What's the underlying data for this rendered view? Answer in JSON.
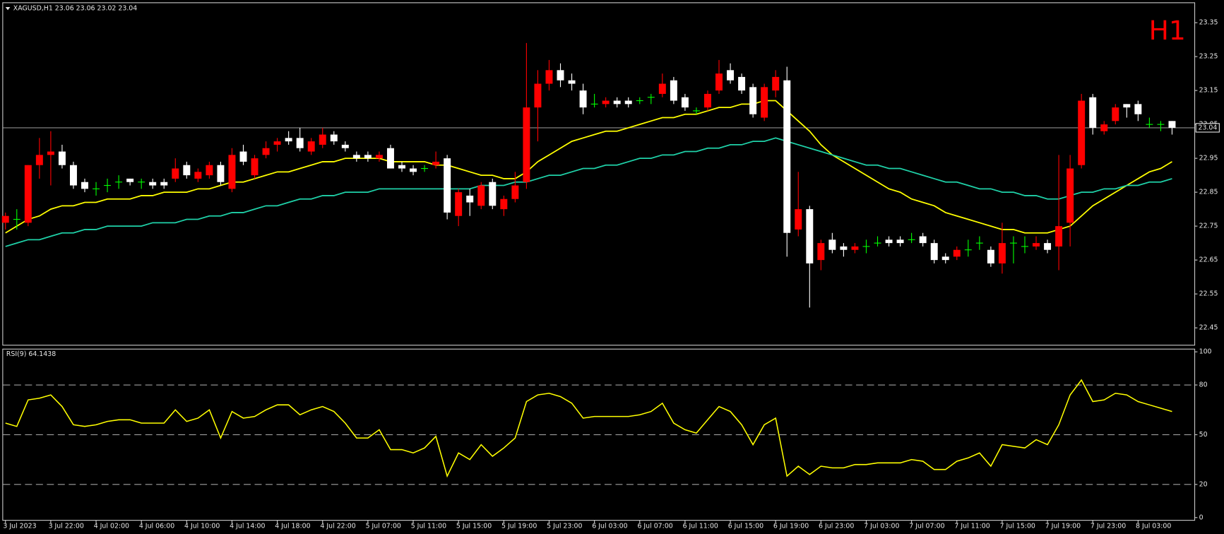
{
  "chart_data": [
    {
      "type": "candlestick",
      "title": "XAGUSD,H1 23.06 23.06 23.02 23.04",
      "timeframe": "H1",
      "current_price": 23.04,
      "up_color": "#ff0000",
      "down_color": "#ffffff",
      "doji_color": "#00ff00",
      "categories": [
        "3 Jul 2023",
        null,
        null,
        null,
        "3 Jul 22:00",
        null,
        null,
        null,
        "4 Jul 02:00",
        null,
        null,
        null,
        "4 Jul 06:00",
        null,
        null,
        null,
        "4 Jul 10:00",
        null,
        null,
        null,
        "4 Jul 14:00",
        null,
        null,
        null,
        "4 Jul 18:00",
        null,
        null,
        null,
        "4 Jul 22:00",
        null,
        null,
        null,
        "5 Jul 07:00",
        null,
        null,
        null,
        "5 Jul 11:00",
        null,
        null,
        null,
        "5 Jul 15:00",
        null,
        null,
        null,
        "5 Jul 19:00",
        null,
        null,
        null,
        "5 Jul 23:00",
        null,
        null,
        null,
        "6 Jul 03:00",
        null,
        null,
        null,
        "6 Jul 07:00",
        null,
        null,
        null,
        "6 Jul 11:00",
        null,
        null,
        null,
        "6 Jul 15:00",
        null,
        null,
        null,
        "6 Jul 19:00",
        null,
        null,
        null,
        "6 Jul 23:00",
        null,
        null,
        null,
        "7 Jul 03:00",
        null,
        null,
        null,
        "7 Jul 07:00",
        null,
        null,
        null,
        "7 Jul 11:00",
        null,
        null,
        null,
        "7 Jul 15:00",
        null,
        null,
        null,
        "7 Jul 19:00",
        null,
        null,
        null,
        "7 Jul 23:00",
        null,
        null,
        null,
        "8 Jul 03:00",
        null,
        null,
        null
      ],
      "open": [
        22.76,
        22.77,
        22.76,
        22.93,
        22.96,
        22.97,
        22.93,
        22.88,
        22.86,
        22.87,
        22.88,
        22.89,
        22.88,
        22.88,
        22.88,
        22.89,
        22.93,
        22.89,
        22.9,
        22.93,
        22.86,
        22.97,
        22.9,
        22.96,
        22.99,
        23.01,
        23.01,
        22.97,
        22.99,
        23.02,
        22.99,
        22.96,
        22.96,
        22.95,
        22.98,
        22.93,
        22.92,
        22.92,
        22.93,
        22.95,
        22.78,
        22.84,
        22.81,
        22.88,
        22.8,
        22.83,
        22.88,
        23.1,
        23.17,
        23.21,
        23.18,
        23.15,
        23.11,
        23.11,
        23.12,
        23.12,
        23.12,
        23.13,
        23.14,
        23.18,
        23.13,
        23.09,
        23.1,
        23.15,
        23.21,
        23.19,
        23.16,
        23.07,
        23.15,
        23.18,
        22.74,
        22.8,
        22.65,
        22.71,
        22.69,
        22.68,
        22.69,
        22.7,
        22.71,
        22.71,
        22.71,
        22.72,
        22.7,
        22.66,
        22.66,
        22.68,
        22.7,
        22.68,
        22.64,
        22.7,
        22.69,
        22.69,
        22.7,
        22.69,
        22.76,
        22.93,
        23.13,
        23.03,
        23.06,
        23.11,
        23.11,
        23.05,
        23.05,
        23.06
      ],
      "high": [
        22.79,
        22.8,
        22.93,
        23.01,
        23.03,
        22.99,
        22.94,
        22.89,
        22.88,
        22.89,
        22.9,
        22.89,
        22.89,
        22.89,
        22.89,
        22.95,
        22.94,
        22.92,
        22.94,
        22.94,
        22.98,
        22.99,
        22.96,
        23.0,
        23.01,
        23.03,
        23.04,
        23.01,
        23.04,
        23.03,
        23.0,
        22.97,
        22.97,
        22.97,
        22.99,
        22.94,
        22.93,
        22.93,
        22.97,
        22.96,
        22.86,
        22.86,
        22.88,
        22.89,
        22.84,
        22.91,
        23.29,
        23.21,
        23.24,
        23.23,
        23.2,
        23.17,
        23.14,
        23.13,
        23.13,
        23.13,
        23.13,
        23.14,
        23.2,
        23.19,
        23.14,
        23.1,
        23.15,
        23.24,
        23.23,
        23.2,
        23.17,
        23.17,
        23.21,
        23.22,
        22.91,
        22.81,
        22.71,
        22.73,
        22.7,
        22.7,
        22.71,
        22.72,
        22.72,
        22.72,
        22.73,
        22.73,
        22.71,
        22.67,
        22.69,
        22.71,
        22.72,
        22.69,
        22.76,
        22.72,
        22.72,
        22.72,
        22.71,
        22.96,
        22.96,
        23.14,
        23.14,
        23.06,
        23.11,
        23.11,
        23.12,
        23.07,
        23.06,
        23.06
      ],
      "low": [
        22.74,
        22.74,
        22.75,
        22.89,
        22.87,
        22.92,
        22.86,
        22.85,
        22.84,
        22.85,
        22.86,
        22.87,
        22.86,
        22.86,
        22.86,
        22.88,
        22.89,
        22.88,
        22.89,
        22.87,
        22.85,
        22.93,
        22.89,
        22.95,
        22.97,
        22.99,
        22.97,
        22.96,
        22.98,
        22.99,
        22.97,
        22.94,
        22.94,
        22.94,
        22.92,
        22.91,
        22.9,
        22.91,
        22.92,
        22.77,
        22.75,
        22.78,
        22.8,
        22.8,
        22.78,
        22.82,
        22.86,
        23.0,
        23.15,
        23.16,
        23.15,
        23.08,
        23.1,
        23.1,
        23.1,
        23.1,
        23.11,
        23.11,
        23.13,
        23.11,
        23.09,
        23.08,
        23.09,
        23.14,
        23.17,
        23.14,
        23.07,
        23.06,
        23.13,
        22.66,
        22.72,
        22.51,
        22.62,
        22.67,
        22.66,
        22.67,
        22.67,
        22.69,
        22.69,
        22.69,
        22.7,
        22.69,
        22.64,
        22.64,
        22.65,
        22.66,
        22.68,
        22.63,
        22.61,
        22.64,
        22.67,
        22.68,
        22.67,
        22.62,
        22.69,
        22.92,
        23.02,
        23.02,
        23.05,
        23.07,
        23.06,
        23.04,
        23.03,
        23.02
      ],
      "close": [
        22.78,
        22.77,
        22.93,
        22.96,
        22.97,
        22.93,
        22.87,
        22.86,
        22.86,
        22.87,
        22.88,
        22.88,
        22.88,
        22.87,
        22.87,
        22.92,
        22.9,
        22.91,
        22.93,
        22.88,
        22.96,
        22.94,
        22.95,
        22.98,
        23.0,
        23.0,
        22.98,
        23.0,
        23.02,
        23.0,
        22.98,
        22.95,
        22.95,
        22.96,
        22.92,
        22.92,
        22.91,
        22.92,
        22.94,
        22.79,
        22.85,
        22.82,
        22.87,
        22.81,
        22.83,
        22.87,
        23.1,
        23.17,
        23.21,
        23.18,
        23.17,
        23.1,
        23.11,
        23.12,
        23.11,
        23.11,
        23.12,
        23.13,
        23.17,
        23.12,
        23.1,
        23.09,
        23.14,
        23.2,
        23.18,
        23.15,
        23.08,
        23.16,
        23.19,
        22.73,
        22.8,
        22.64,
        22.7,
        22.68,
        22.68,
        22.69,
        22.69,
        22.7,
        22.7,
        22.7,
        22.71,
        22.7,
        22.65,
        22.65,
        22.68,
        22.68,
        22.7,
        22.64,
        22.7,
        22.7,
        22.69,
        22.7,
        22.68,
        22.75,
        22.92,
        23.12,
        23.04,
        23.05,
        23.1,
        23.1,
        23.08,
        23.05,
        23.05,
        23.04
      ],
      "series": [
        {
          "color": "#ffff00",
          "values": [
            22.73,
            22.75,
            22.77,
            22.78,
            22.8,
            22.81,
            22.81,
            22.82,
            22.82,
            22.83,
            22.83,
            22.83,
            22.84,
            22.84,
            22.85,
            22.85,
            22.85,
            22.86,
            22.86,
            22.87,
            22.88,
            22.88,
            22.89,
            22.9,
            22.91,
            22.91,
            22.92,
            22.93,
            22.94,
            22.94,
            22.95,
            22.95,
            22.95,
            22.95,
            22.94,
            22.94,
            22.94,
            22.94,
            22.93,
            22.93,
            22.92,
            22.91,
            22.9,
            22.9,
            22.89,
            22.89,
            22.91,
            22.94,
            22.96,
            22.98,
            23.0,
            23.01,
            23.02,
            23.03,
            23.03,
            23.04,
            23.05,
            23.06,
            23.07,
            23.07,
            23.08,
            23.08,
            23.09,
            23.1,
            23.1,
            23.11,
            23.11,
            23.12,
            23.12,
            23.09,
            23.06,
            23.03,
            22.99,
            22.96,
            22.94,
            22.92,
            22.9,
            22.88,
            22.86,
            22.85,
            22.83,
            22.82,
            22.81,
            22.79,
            22.78,
            22.77,
            22.76,
            22.75,
            22.74,
            22.74,
            22.73,
            22.73,
            22.73,
            22.74,
            22.75,
            22.78,
            22.81,
            22.83,
            22.85,
            22.87,
            22.89,
            22.91,
            22.92,
            22.94
          ]
        },
        {
          "color": "#1fd1a8",
          "values": [
            22.69,
            22.7,
            22.71,
            22.71,
            22.72,
            22.73,
            22.73,
            22.74,
            22.74,
            22.75,
            22.75,
            22.75,
            22.75,
            22.76,
            22.76,
            22.76,
            22.77,
            22.77,
            22.78,
            22.78,
            22.79,
            22.79,
            22.8,
            22.81,
            22.81,
            22.82,
            22.83,
            22.83,
            22.84,
            22.84,
            22.85,
            22.85,
            22.85,
            22.86,
            22.86,
            22.86,
            22.86,
            22.86,
            22.86,
            22.86,
            22.86,
            22.86,
            22.87,
            22.87,
            22.87,
            22.88,
            22.88,
            22.89,
            22.9,
            22.9,
            22.91,
            22.92,
            22.92,
            22.93,
            22.93,
            22.94,
            22.95,
            22.95,
            22.96,
            22.96,
            22.97,
            22.97,
            22.98,
            22.98,
            22.99,
            22.99,
            23.0,
            23.0,
            23.01,
            23.0,
            22.99,
            22.98,
            22.97,
            22.96,
            22.95,
            22.94,
            22.93,
            22.93,
            22.92,
            22.92,
            22.91,
            22.9,
            22.89,
            22.88,
            22.88,
            22.87,
            22.86,
            22.86,
            22.85,
            22.85,
            22.84,
            22.84,
            22.83,
            22.83,
            22.84,
            22.85,
            22.85,
            22.86,
            22.86,
            22.87,
            22.87,
            22.88,
            22.88,
            22.89
          ]
        }
      ],
      "ylim": [
        22.4,
        23.41
      ],
      "yticks": [
        23.35,
        23.25,
        23.15,
        23.05,
        22.95,
        22.85,
        22.75,
        22.65,
        22.55,
        22.45
      ]
    },
    {
      "type": "line",
      "title": "RSI(9) 64.1438",
      "color": "#ffff00",
      "values": [
        57,
        55,
        71,
        72,
        74,
        67,
        56,
        55,
        56,
        58,
        59,
        59,
        57,
        57,
        57,
        65,
        58,
        60,
        65,
        48,
        64,
        60,
        61,
        65,
        68,
        68,
        62,
        65,
        67,
        64,
        57,
        48,
        48,
        53,
        41,
        41,
        39,
        42,
        49,
        25,
        39,
        35,
        44,
        37,
        42,
        48,
        70,
        74,
        75,
        73,
        69,
        60,
        61,
        61,
        61,
        61,
        62,
        64,
        69,
        57,
        53,
        51,
        59,
        67,
        64,
        56,
        44,
        56,
        60,
        25,
        31,
        26,
        31,
        30,
        30,
        32,
        32,
        33,
        33,
        33,
        35,
        34,
        29,
        29,
        34,
        36,
        39,
        31,
        44,
        43,
        42,
        47,
        44,
        56,
        74,
        83,
        70,
        71,
        75,
        74,
        70,
        68,
        66,
        64
      ],
      "levels": [
        80,
        50,
        20
      ],
      "ylim": [
        0,
        100
      ],
      "yticks": [
        100,
        80,
        50,
        20,
        0
      ]
    }
  ]
}
